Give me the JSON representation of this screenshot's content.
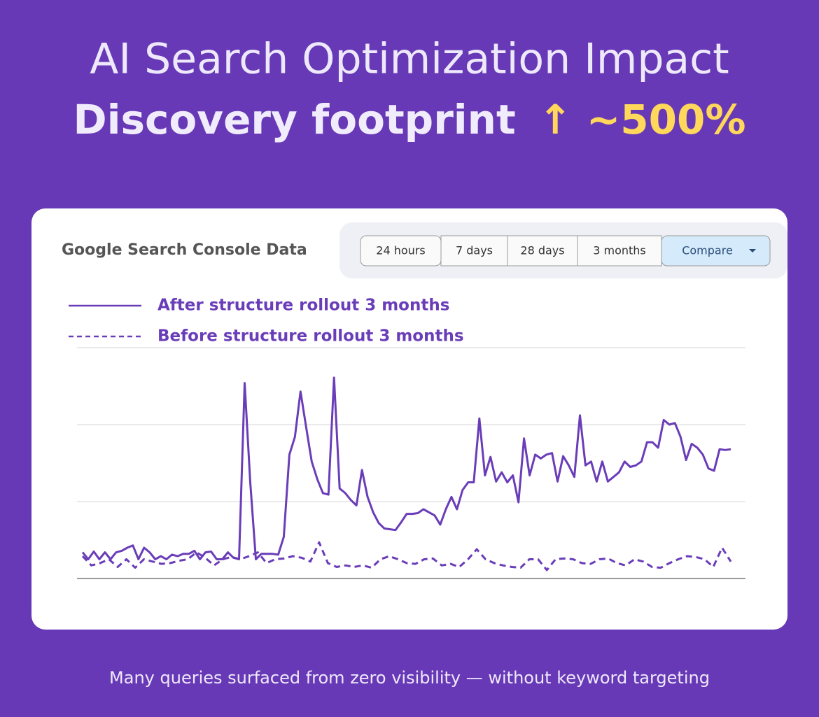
{
  "header": {
    "title": "AI Search Optimization Impact",
    "headline": "Discovery footprint",
    "highlight": "↑ ~500%"
  },
  "chart_data": {
    "type": "line",
    "title": "Google Search Console Data",
    "tabs": [
      "24 hours",
      "7 days",
      "28 days",
      "3 months",
      "Compare"
    ],
    "ylim": [
      0,
      3
    ],
    "yticks": [
      0,
      1,
      2,
      3
    ],
    "grid": true,
    "series": [
      {
        "name": "After structure rollout 3 months",
        "color": "#6a3db8",
        "style": "solid",
        "values": [
          0.34,
          0.25,
          0.35,
          0.25,
          0.34,
          0.25,
          0.34,
          0.36,
          0.4,
          0.43,
          0.25,
          0.4,
          0.34,
          0.25,
          0.29,
          0.25,
          0.31,
          0.29,
          0.32,
          0.32,
          0.36,
          0.25,
          0.34,
          0.35,
          0.25,
          0.25,
          0.34,
          0.27,
          0.25,
          2.54,
          1.25,
          0.25,
          0.32,
          0.32,
          0.32,
          0.31,
          0.54,
          1.61,
          1.84,
          2.43,
          1.97,
          1.52,
          1.29,
          1.11,
          1.09,
          2.61,
          1.17,
          1.11,
          1.02,
          0.95,
          1.41,
          1.06,
          0.86,
          0.72,
          0.65,
          0.64,
          0.63,
          0.73,
          0.84,
          0.84,
          0.85,
          0.9,
          0.86,
          0.82,
          0.7,
          0.9,
          1.06,
          0.9,
          1.15,
          1.25,
          1.25,
          2.08,
          1.34,
          1.58,
          1.26,
          1.38,
          1.25,
          1.34,
          0.99,
          1.82,
          1.34,
          1.61,
          1.56,
          1.61,
          1.63,
          1.26,
          1.59,
          1.47,
          1.32,
          2.12,
          1.47,
          1.52,
          1.26,
          1.52,
          1.26,
          1.32,
          1.38,
          1.52,
          1.45,
          1.47,
          1.52,
          1.77,
          1.77,
          1.7,
          2.06,
          2,
          2.02,
          1.84,
          1.54,
          1.75,
          1.7,
          1.61,
          1.43,
          1.4,
          1.68,
          1.67,
          1.68
        ]
      },
      {
        "name": "Before structure rollout 3 months",
        "color": "#6a3db8",
        "style": "dashed",
        "values": [
          0.29,
          0.17,
          0.2,
          0.25,
          0.15,
          0.25,
          0.14,
          0.25,
          0.22,
          0.19,
          0.2,
          0.23,
          0.25,
          0.34,
          0.27,
          0.17,
          0.25,
          0.28,
          0.25,
          0.29,
          0.34,
          0.2,
          0.25,
          0.26,
          0.29,
          0.27,
          0.22,
          0.47,
          0.2,
          0.15,
          0.17,
          0.15,
          0.17,
          0.14,
          0.25,
          0.29,
          0.25,
          0.2,
          0.19,
          0.25,
          0.26,
          0.17,
          0.19,
          0.15,
          0.25,
          0.38,
          0.25,
          0.2,
          0.17,
          0.15,
          0.14,
          0.25,
          0.25,
          0.11,
          0.25,
          0.26,
          0.25,
          0.2,
          0.19,
          0.25,
          0.26,
          0.2,
          0.17,
          0.25,
          0.22,
          0.15,
          0.14,
          0.2,
          0.25,
          0.29,
          0.28,
          0.25,
          0.15,
          0.4,
          0.22
        ]
      }
    ]
  },
  "footer": {
    "note": "Many queries surfaced from zero visibility — without keyword targeting"
  }
}
